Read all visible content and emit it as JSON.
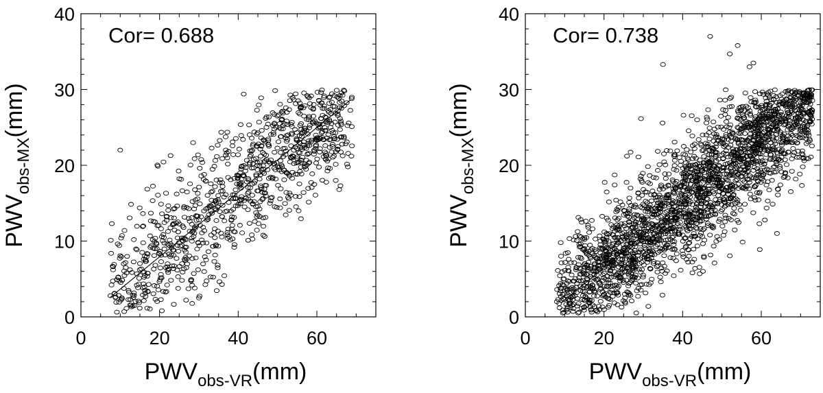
{
  "chart_data": [
    {
      "type": "scatter",
      "panel": "left",
      "correlation_label": "Cor= 0.688",
      "correlation": 0.688,
      "xlabel": "PWV",
      "xlabel_sub": "obs-VR",
      "xlabel_unit": "(mm)",
      "ylabel": "PWV",
      "ylabel_sub": "obs-MX",
      "ylabel_unit": "(mm)",
      "xlim": [
        0,
        75
      ],
      "ylim": [
        0,
        40
      ],
      "xticks": [
        0,
        20,
        40,
        60
      ],
      "yticks": [
        0,
        10,
        20,
        30,
        40
      ],
      "xtick_labels": [
        "0",
        "20",
        "40",
        "60"
      ],
      "ytick_labels": [
        "0",
        "10",
        "20",
        "30",
        "40"
      ],
      "fit_line": {
        "x": [
          7.5,
          68.5
        ],
        "y": [
          2.6,
          28.6
        ]
      },
      "n_points": 1000,
      "point_cloud": {
        "x_range": [
          7.5,
          69
        ],
        "y_range": [
          0.5,
          30
        ],
        "slope": 0.43,
        "intercept": -0.6,
        "spread": 4.6
      },
      "notable_points": [
        {
          "x": 10,
          "y": 22
        },
        {
          "x": 11,
          "y": 0.7
        },
        {
          "x": 67,
          "y": 29.8
        },
        {
          "x": 66,
          "y": 17.3
        },
        {
          "x": 7.5,
          "y": 2.8
        },
        {
          "x": 30,
          "y": 2.5
        }
      ]
    },
    {
      "type": "scatter",
      "panel": "right",
      "correlation_label": "Cor= 0.738",
      "correlation": 0.738,
      "xlabel": "PWV",
      "xlabel_sub": "obs-VR",
      "xlabel_unit": "(mm)",
      "ylabel": "PWV",
      "ylabel_sub": "obs-MX",
      "ylabel_unit": "(mm)",
      "xlim": [
        0,
        75
      ],
      "ylim": [
        0,
        40
      ],
      "xticks": [
        0,
        20,
        40,
        60
      ],
      "yticks": [
        0,
        10,
        20,
        30,
        40
      ],
      "xtick_labels": [
        "0",
        "20",
        "40",
        "60"
      ],
      "ytick_labels": [
        "0",
        "10",
        "20",
        "30",
        "40"
      ],
      "fit_line": {
        "x": [
          9,
          72
        ],
        "y": [
          1.8,
          28.8
        ]
      },
      "n_points": 2400,
      "point_cloud": {
        "x_range": [
          8,
          73
        ],
        "y_range": [
          0.5,
          30
        ],
        "slope": 0.43,
        "intercept": -2.1,
        "spread": 3.9
      },
      "notable_points": [
        {
          "x": 47,
          "y": 37
        },
        {
          "x": 54,
          "y": 35.8
        },
        {
          "x": 52,
          "y": 34.7
        },
        {
          "x": 58,
          "y": 33.5
        },
        {
          "x": 57,
          "y": 33
        },
        {
          "x": 35,
          "y": 33.3
        },
        {
          "x": 9,
          "y": 9.8
        },
        {
          "x": 8,
          "y": 2
        },
        {
          "x": 64,
          "y": 11
        }
      ]
    }
  ]
}
